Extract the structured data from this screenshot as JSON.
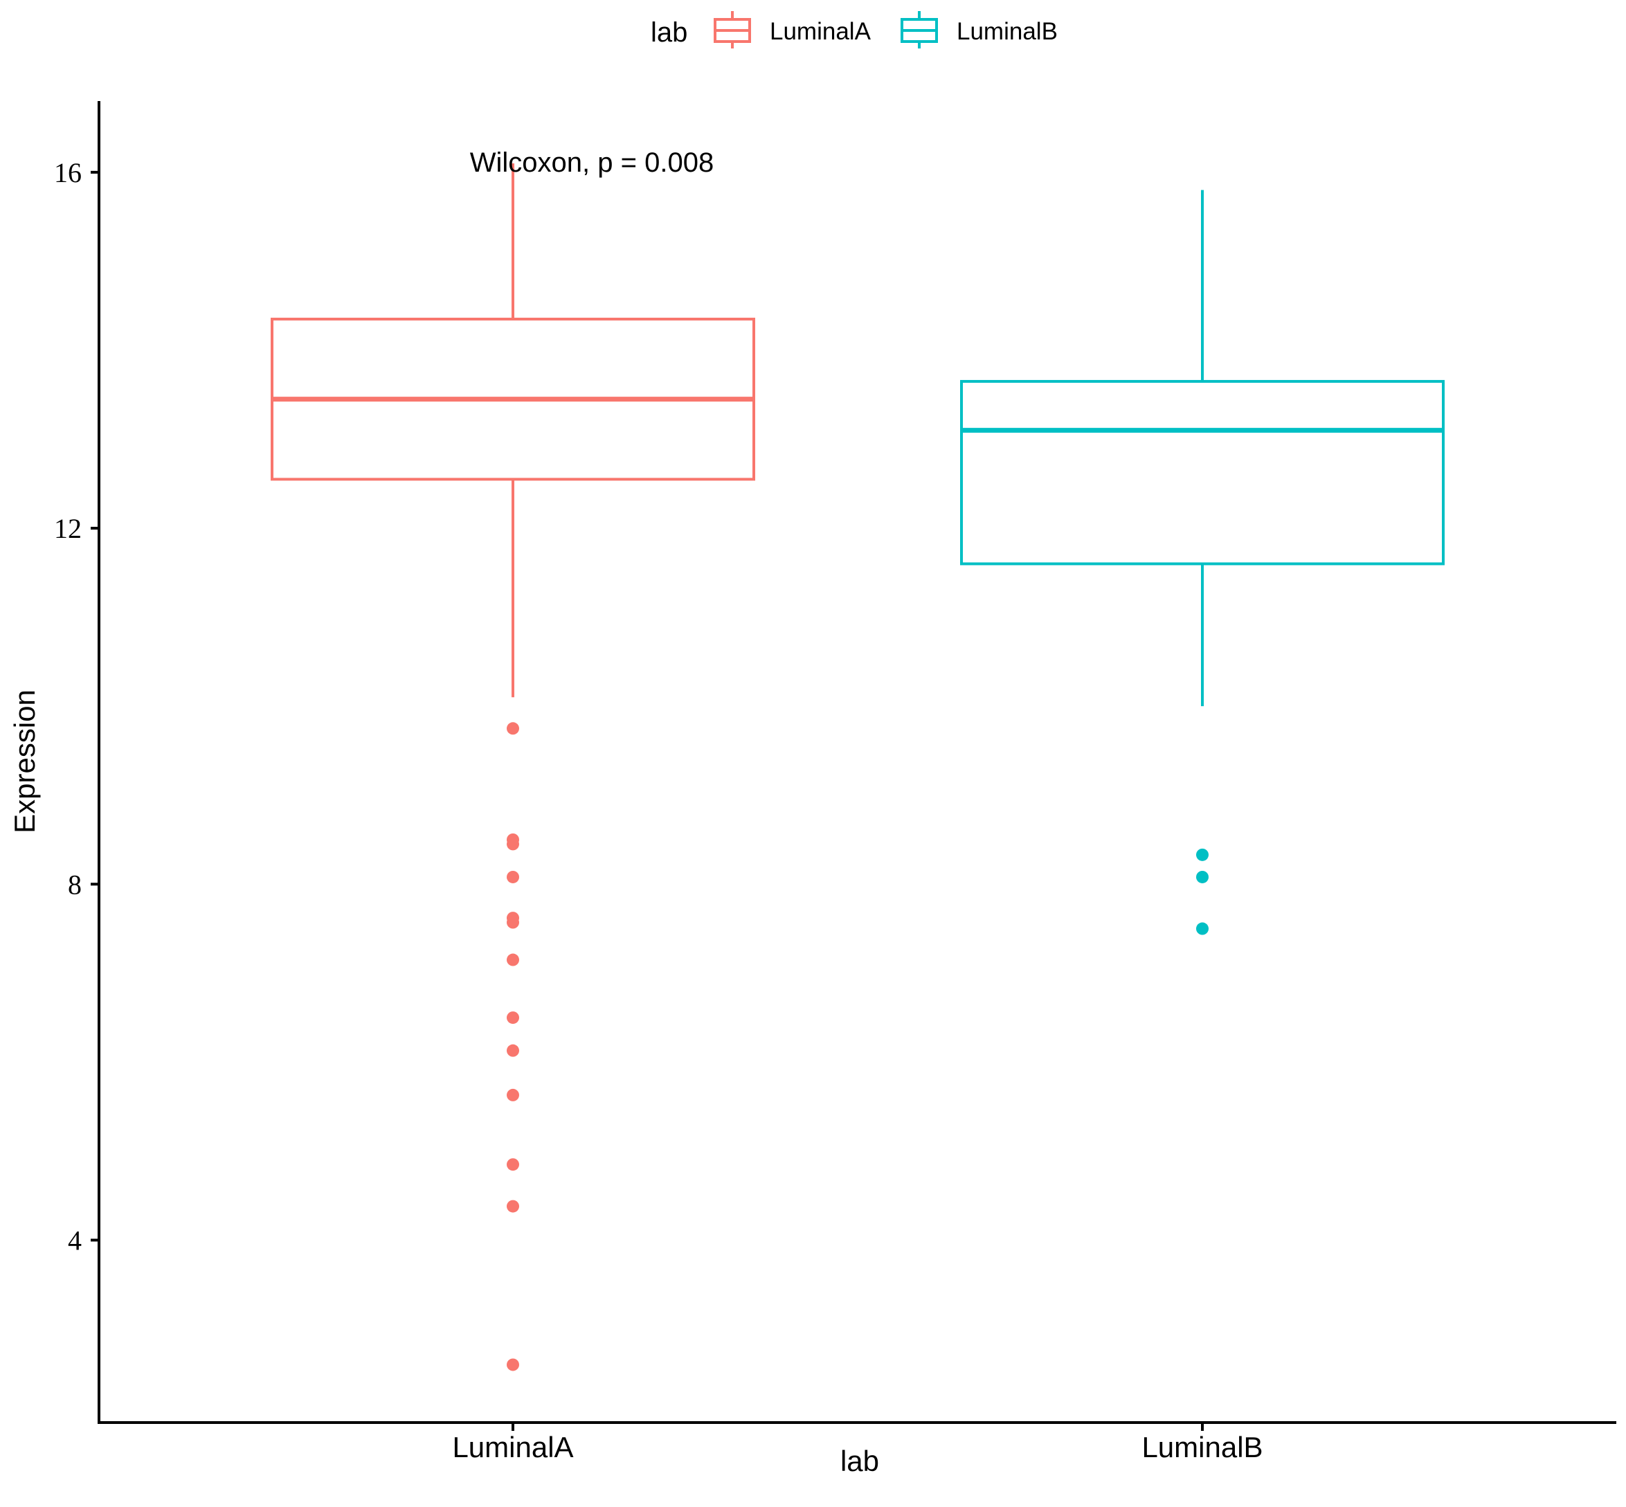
{
  "chart_data": {
    "type": "boxplot",
    "title": "",
    "xlabel": "lab",
    "ylabel": "Expression",
    "ylim": [
      1.95,
      16.8
    ],
    "yticks": [
      4,
      8,
      12,
      16
    ],
    "ytick_labels": [
      "4",
      "8",
      "12",
      "16"
    ],
    "legend": {
      "title": "lab",
      "position": "top",
      "entries": [
        "LuminalA",
        "LuminalB"
      ]
    },
    "annotation": "Wilcoxon, p = 0.008",
    "categories": [
      "LuminalA",
      "LuminalB"
    ],
    "series": [
      {
        "name": "LuminalA",
        "color": "#F8766D",
        "whisker_low": 10.1,
        "q1": 12.55,
        "median": 13.45,
        "q3": 14.35,
        "whisker_high": 16.1,
        "outliers": [
          9.75,
          8.5,
          8.45,
          8.08,
          7.62,
          7.57,
          7.15,
          6.5,
          6.13,
          5.63,
          4.85,
          4.38,
          2.6
        ]
      },
      {
        "name": "LuminalB",
        "color": "#00BFC4",
        "whisker_low": 10.0,
        "q1": 11.6,
        "median": 13.1,
        "q3": 13.65,
        "whisker_high": 15.8,
        "outliers": [
          8.33,
          8.08,
          7.5
        ]
      }
    ]
  }
}
